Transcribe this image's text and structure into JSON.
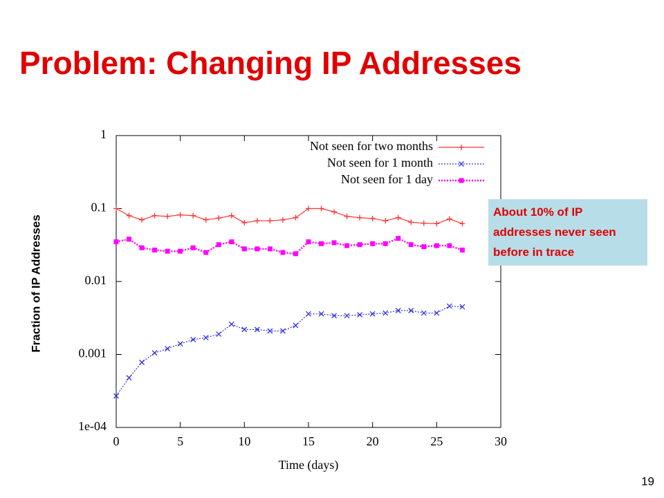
{
  "slide": {
    "title": "Problem: Changing IP Addresses",
    "annotation": "About 10% of IP addresses never seen before in trace",
    "page_number": "19"
  },
  "chart_data": {
    "type": "line",
    "ylabel": "Fraction of IP Addresses",
    "xlabel": "Time (days)",
    "x": [
      0,
      1,
      2,
      3,
      4,
      5,
      6,
      7,
      8,
      9,
      10,
      11,
      12,
      13,
      14,
      15,
      16,
      17,
      18,
      19,
      20,
      21,
      22,
      23,
      24,
      25,
      26,
      27
    ],
    "series": [
      {
        "name": "Not seen for two months",
        "color": "#ff3030",
        "marker": "plus",
        "dash": "solid",
        "values": [
          0.1,
          0.08,
          0.07,
          0.08,
          0.078,
          0.082,
          0.08,
          0.07,
          0.074,
          0.08,
          0.064,
          0.068,
          0.068,
          0.07,
          0.075,
          0.1,
          0.1,
          0.09,
          0.078,
          0.075,
          0.073,
          0.068,
          0.075,
          0.065,
          0.063,
          0.062,
          0.072,
          0.062
        ]
      },
      {
        "name": "Not seen for 1 month",
        "color": "#3030e0",
        "marker": "cross",
        "dash": "dotted",
        "values": [
          0.00027,
          0.00048,
          0.00078,
          0.00105,
          0.0012,
          0.0014,
          0.0016,
          0.0017,
          0.0019,
          0.0026,
          0.0022,
          0.0022,
          0.0021,
          0.0021,
          0.0025,
          0.0036,
          0.0036,
          0.0034,
          0.0034,
          0.0035,
          0.0036,
          0.0037,
          0.004,
          0.004,
          0.0037,
          0.0037,
          0.0046,
          0.0045
        ]
      },
      {
        "name": "Not seen for 1 day",
        "color": "#ff00ff",
        "marker": "square",
        "dash": "dotted",
        "values": [
          0.035,
          0.038,
          0.029,
          0.027,
          0.026,
          0.026,
          0.029,
          0.025,
          0.032,
          0.035,
          0.028,
          0.028,
          0.028,
          0.025,
          0.024,
          0.035,
          0.033,
          0.034,
          0.031,
          0.032,
          0.033,
          0.033,
          0.039,
          0.032,
          0.03,
          0.031,
          0.031,
          0.027
        ]
      }
    ],
    "xlim": [
      0,
      30
    ],
    "xticks": [
      0,
      5,
      10,
      15,
      20,
      25,
      30
    ],
    "ylim": [
      0.0001,
      1
    ],
    "yticks": [
      {
        "value": 0.0001,
        "label": "1e-04"
      },
      0.001,
      0.01,
      0.1,
      1
    ],
    "ylog": true,
    "grid": false,
    "legend": "top-right"
  }
}
